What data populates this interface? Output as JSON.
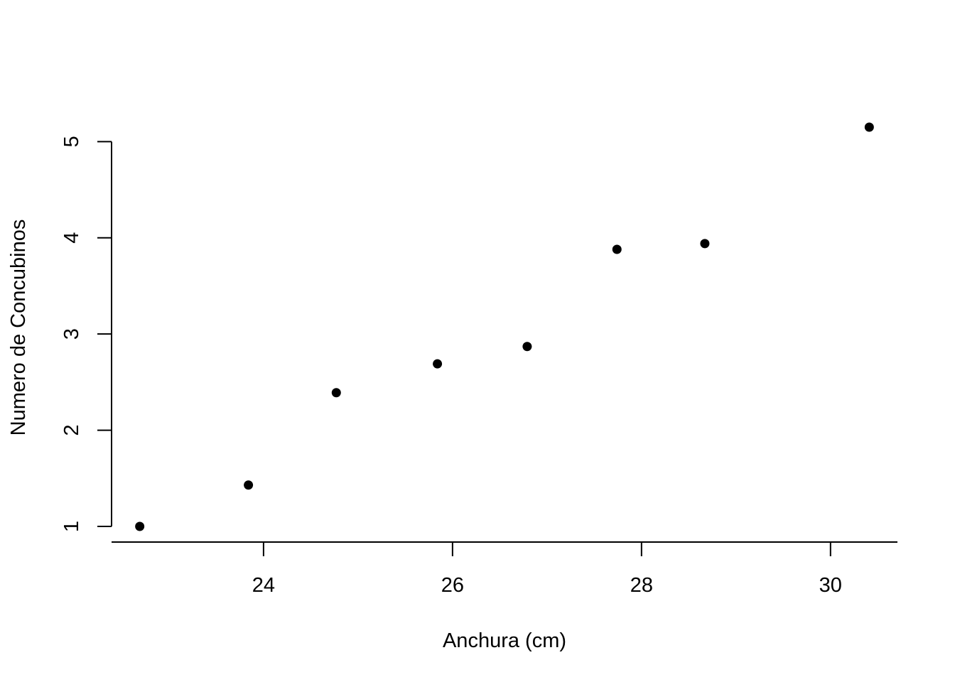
{
  "chart_data": {
    "type": "scatter",
    "title": "",
    "xlabel": "Anchura (cm)",
    "ylabel": "Numero de Concubinos",
    "xlim": [
      22.7,
      30.4
    ],
    "ylim": [
      1.0,
      5.15
    ],
    "x_ticks": [
      24,
      26,
      28,
      30
    ],
    "y_ticks": [
      1,
      2,
      3,
      4,
      5
    ],
    "x_tick_labels": [
      "24",
      "26",
      "28",
      "30"
    ],
    "y_tick_labels": [
      "1",
      "2",
      "3",
      "4",
      "5"
    ],
    "grid": false,
    "marker_color": "#000000",
    "points": [
      {
        "x": 22.69,
        "y": 1.0
      },
      {
        "x": 23.84,
        "y": 1.43
      },
      {
        "x": 24.77,
        "y": 2.39
      },
      {
        "x": 25.84,
        "y": 2.69
      },
      {
        "x": 26.79,
        "y": 2.87
      },
      {
        "x": 27.74,
        "y": 3.88
      },
      {
        "x": 28.67,
        "y": 3.94
      },
      {
        "x": 30.41,
        "y": 5.15
      }
    ]
  }
}
